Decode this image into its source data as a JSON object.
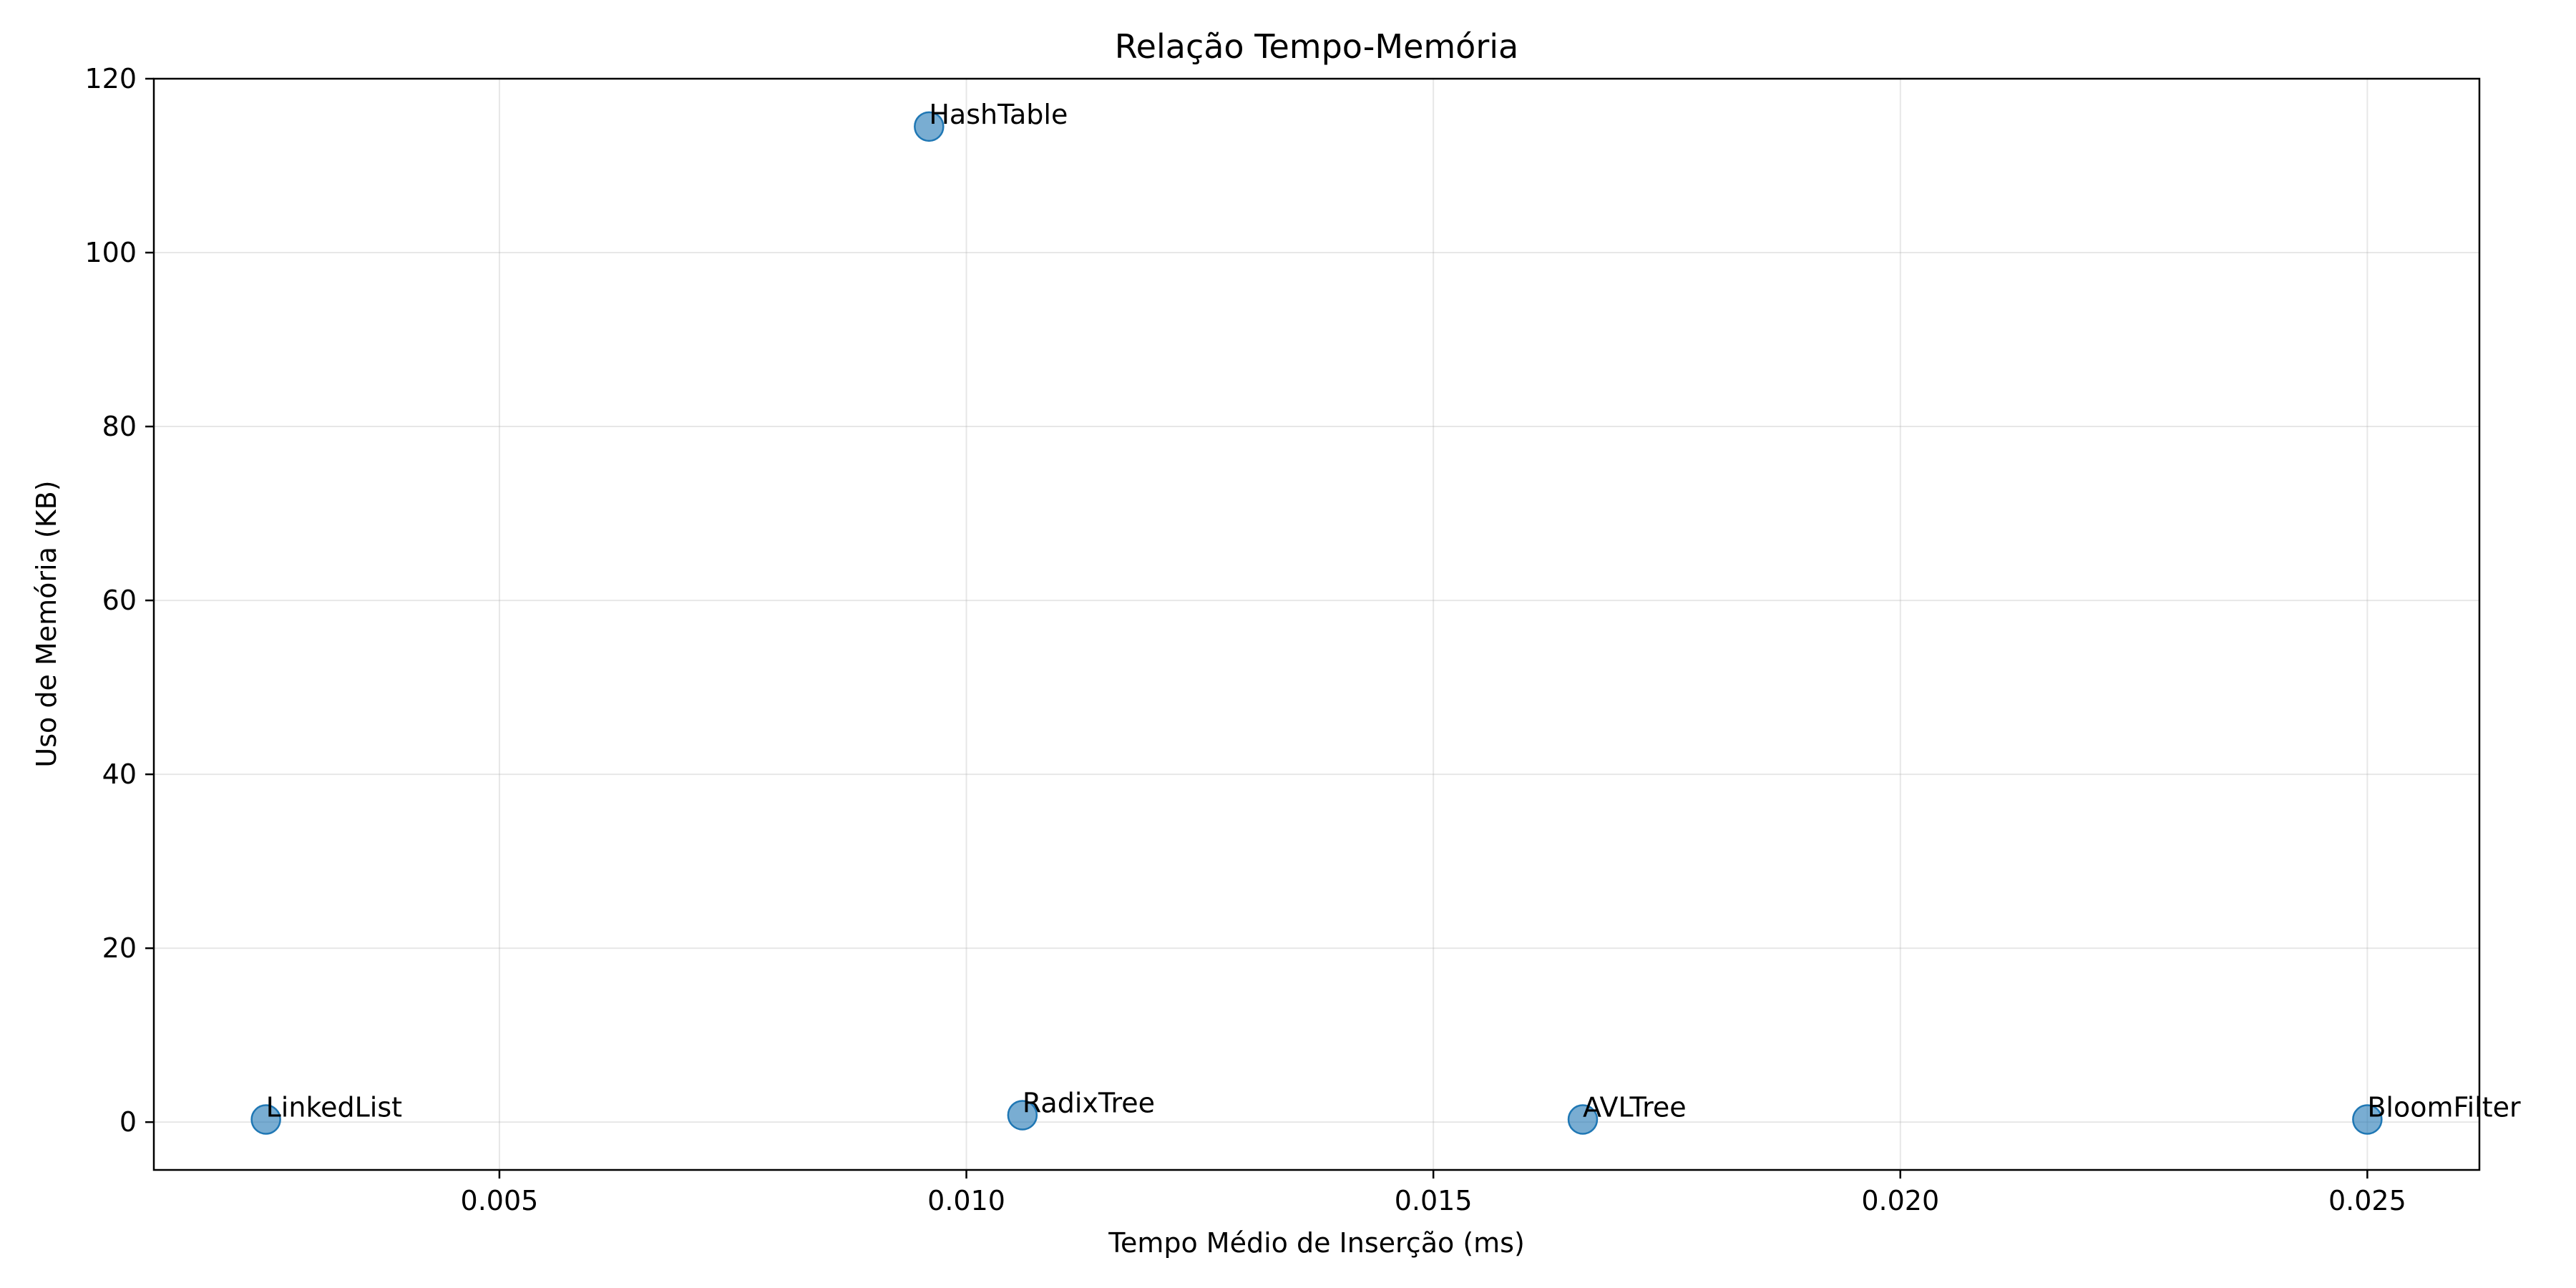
{
  "chart_data": {
    "type": "scatter",
    "title": "Relação Tempo-Memória",
    "xlabel": "Tempo Médio de Inserção (ms)",
    "ylabel": "Uso de Memória (KB)",
    "xlim": [
      0.0013,
      0.0262
    ],
    "ylim": [
      -5.5,
      120
    ],
    "xticks": [
      0.005,
      0.01,
      0.015,
      0.02,
      0.025
    ],
    "xtick_labels": [
      "0.005",
      "0.010",
      "0.015",
      "0.020",
      "0.025"
    ],
    "yticks": [
      0,
      20,
      40,
      60,
      80,
      100,
      120
    ],
    "ytick_labels": [
      "0",
      "20",
      "40",
      "60",
      "80",
      "100",
      "120"
    ],
    "grid": true,
    "point_color": "#1f77b4",
    "points": [
      {
        "label": "LinkedList",
        "x": 0.0025,
        "y": 0.3
      },
      {
        "label": "HashTable",
        "x": 0.0096,
        "y": 114.5
      },
      {
        "label": "RadixTree",
        "x": 0.0106,
        "y": 0.8
      },
      {
        "label": "AVLTree",
        "x": 0.0166,
        "y": 0.3
      },
      {
        "label": "BloomFilter",
        "x": 0.025,
        "y": 0.3
      }
    ]
  }
}
